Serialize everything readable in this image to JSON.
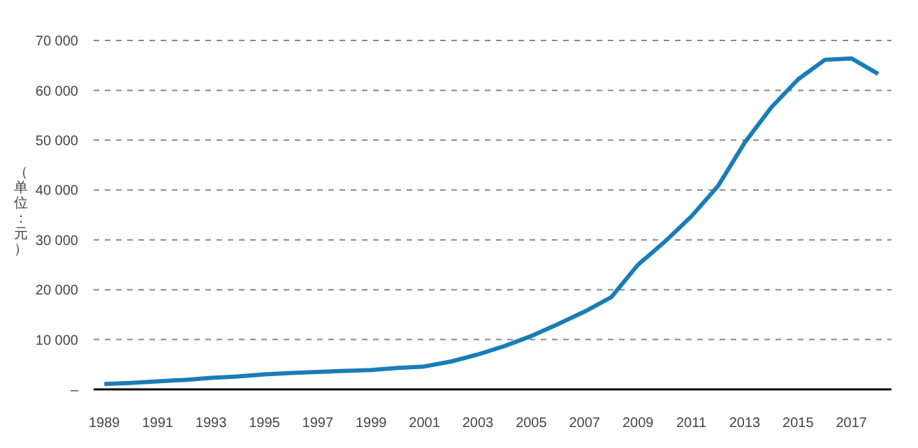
{
  "chart_data": {
    "type": "line",
    "ylabel": "（单位：元）",
    "x": [
      1989,
      1990,
      1991,
      1992,
      1993,
      1994,
      1995,
      1996,
      1997,
      1998,
      1999,
      2000,
      2001,
      2002,
      2003,
      2004,
      2005,
      2006,
      2007,
      2008,
      2009,
      2010,
      2011,
      2012,
      2013,
      2014,
      2015,
      2016,
      2017,
      2018
    ],
    "series": [
      {
        "color": "#1a7db5",
        "values": [
          1100,
          1300,
          1600,
          1900,
          2300,
          2600,
          3000,
          3300,
          3500,
          3700,
          3900,
          4300,
          4600,
          5600,
          7000,
          8700,
          10700,
          13100,
          15600,
          18500,
          25000,
          29600,
          34700,
          40800,
          49500,
          56600,
          62200,
          66100,
          66400,
          63300
        ]
      }
    ],
    "xlim": [
      1988.6,
      2018.5
    ],
    "xticks": [
      1989,
      1991,
      1993,
      1995,
      1997,
      1999,
      2001,
      2003,
      2005,
      2007,
      2009,
      2011,
      2013,
      2015,
      2017
    ],
    "ylim": [
      0,
      70000
    ],
    "yticks": [
      {
        "value": 0,
        "label": "–"
      },
      {
        "value": 10000,
        "label": "10 000"
      },
      {
        "value": 20000,
        "label": "20 000"
      },
      {
        "value": 30000,
        "label": "30 000"
      },
      {
        "value": 40000,
        "label": "40 000"
      },
      {
        "value": 50000,
        "label": "50 000"
      },
      {
        "value": 60000,
        "label": "60 000"
      },
      {
        "value": 70000,
        "label": "70 000"
      }
    ],
    "grid": "y",
    "legend": false,
    "marker": "none",
    "line_style": "solid"
  }
}
